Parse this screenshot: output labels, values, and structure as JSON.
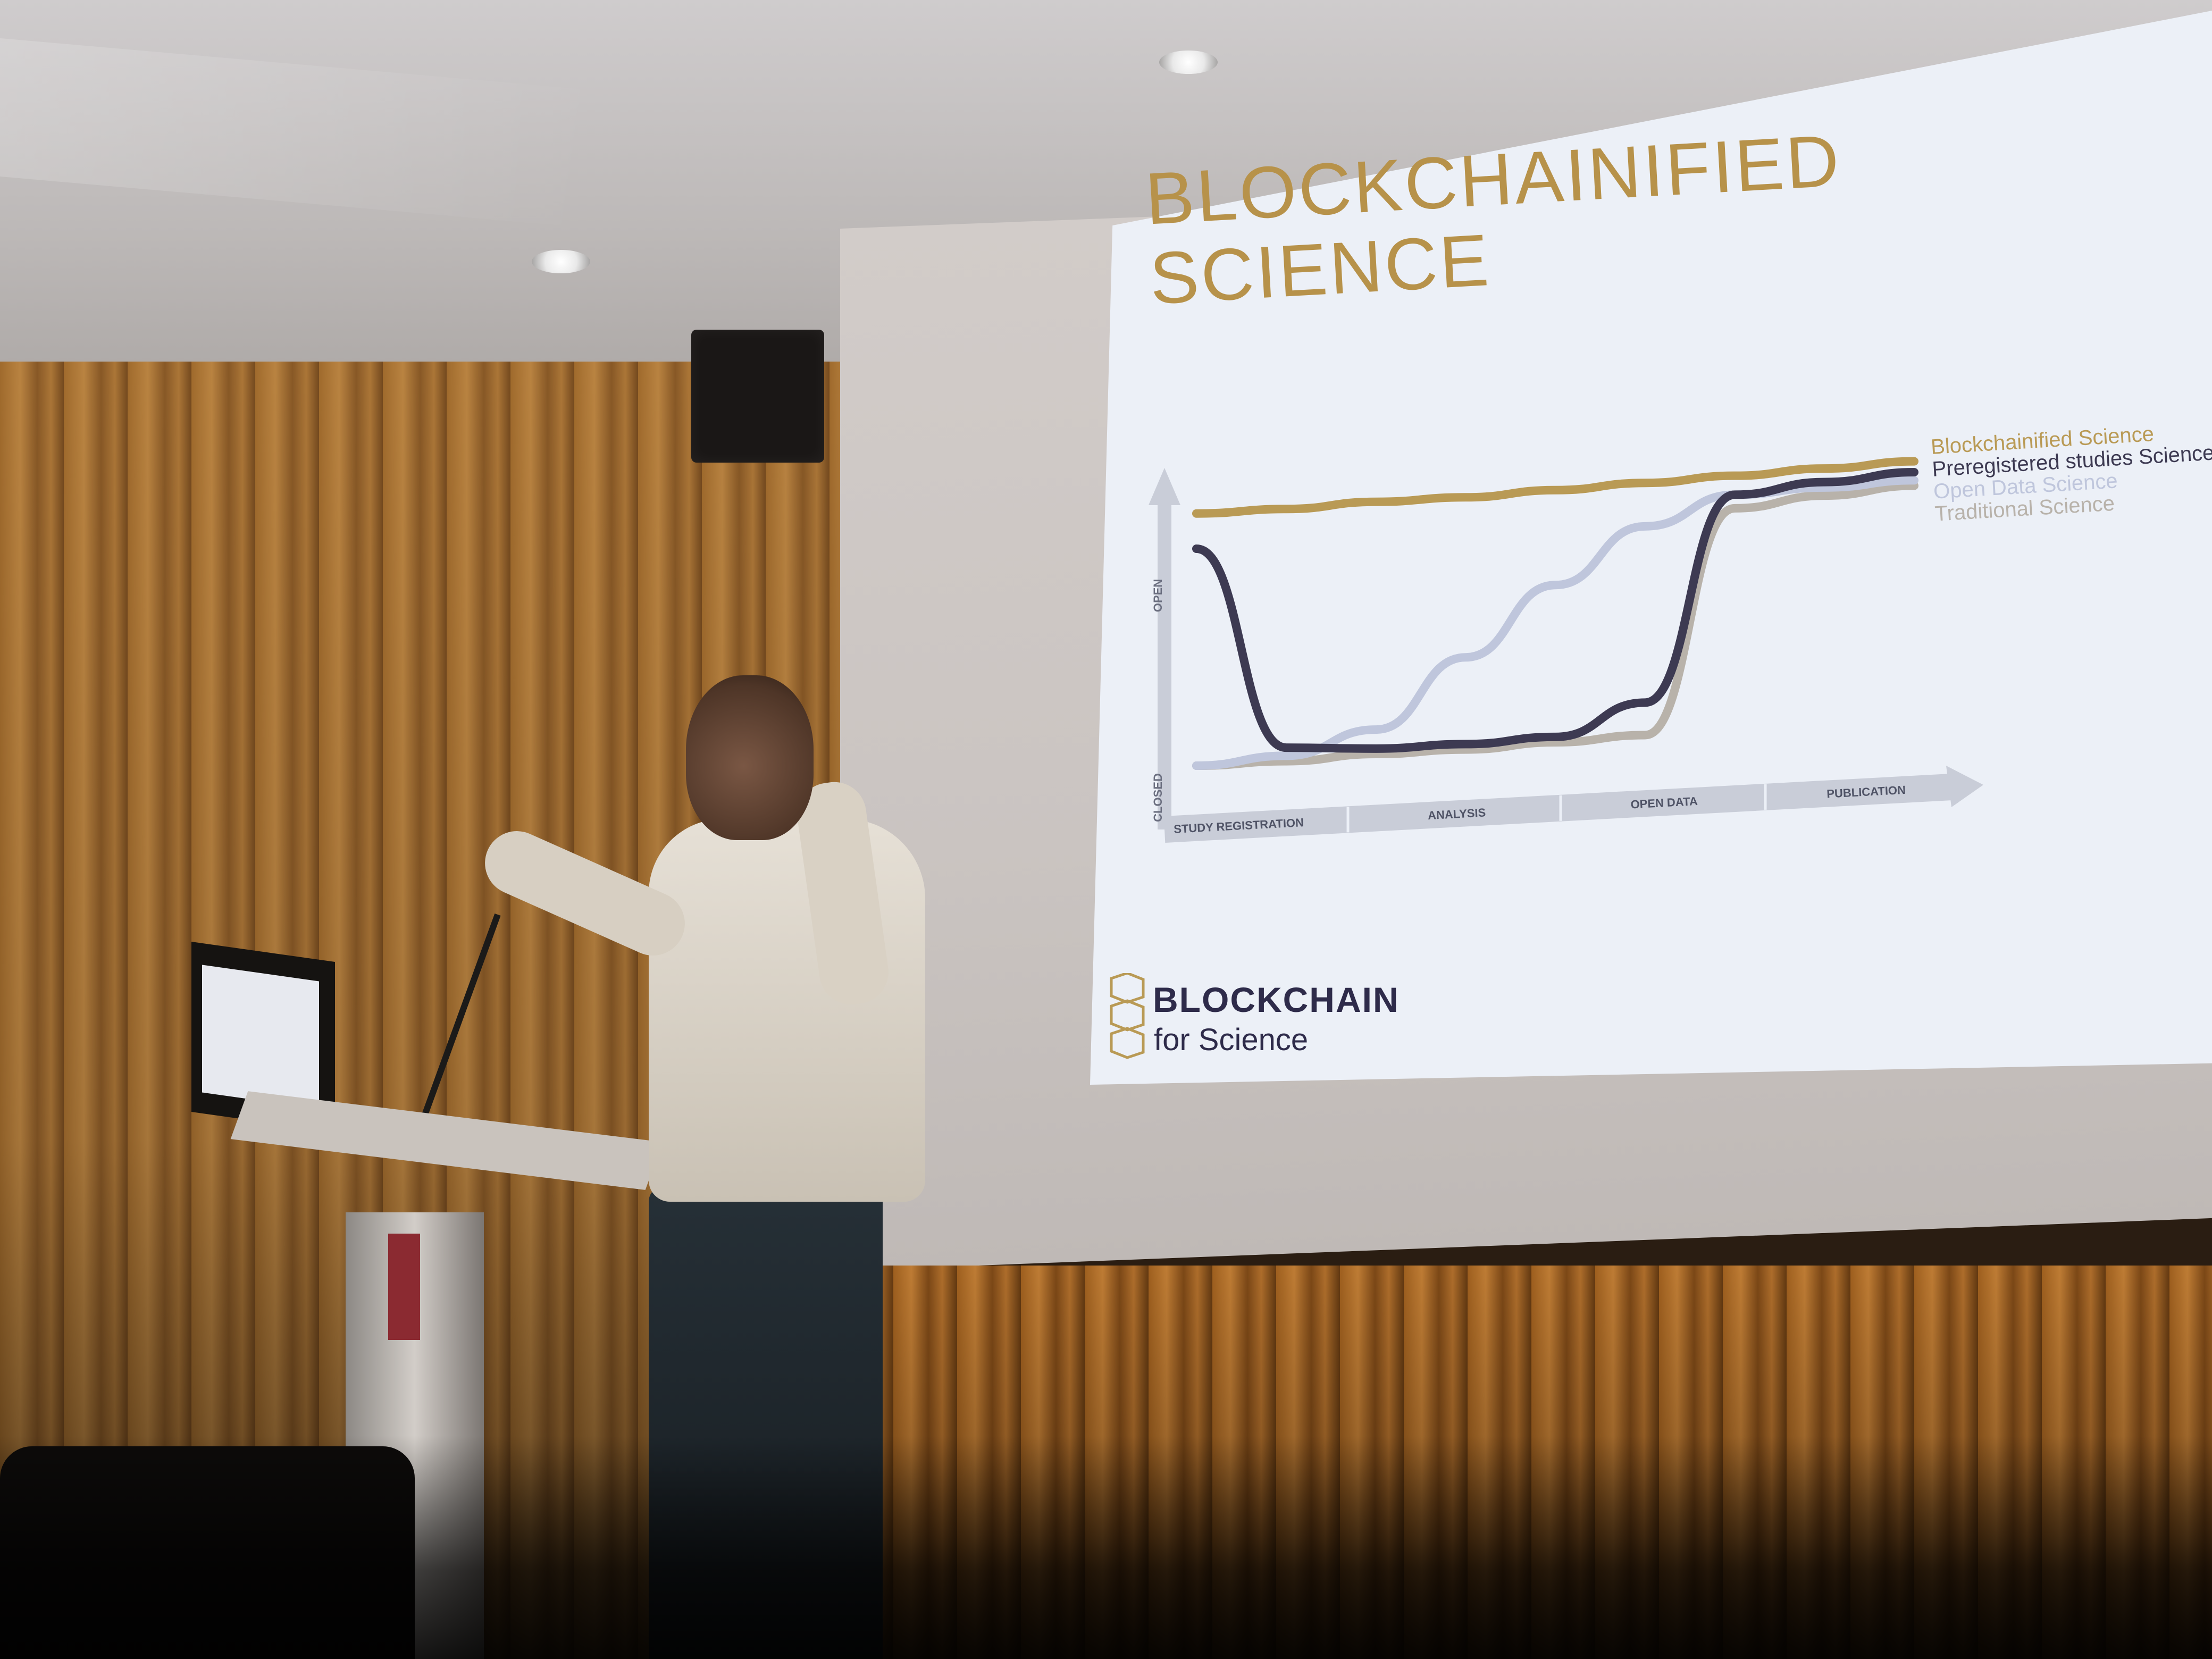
{
  "slide": {
    "title": "BLOCKCHAINIFIED\nSCIENCE",
    "brand_line1": "BLOCKCHAIN",
    "brand_line2": "for Science"
  },
  "colors": {
    "title": "#b7924a",
    "blockchainified": "#b99a55",
    "preregistered": "#3d3a52",
    "open_data": "#bfc6dc",
    "traditional": "#b8b2aa"
  },
  "chart_data": {
    "type": "line",
    "title": "",
    "xlabel": "",
    "ylabel": "",
    "y_tick_labels": [
      "CLOSED",
      "OPEN"
    ],
    "x_phases": [
      "STUDY REGISTRATION",
      "ANALYSIS",
      "OPEN DATA",
      "PUBLICATION"
    ],
    "x": [
      0,
      0.5,
      1,
      1.5,
      2,
      2.5,
      3,
      3.5,
      4
    ],
    "ylim": [
      0,
      1
    ],
    "legend_position": "top-right",
    "series": [
      {
        "name": "Blockchainified Science",
        "values": [
          0.93,
          0.93,
          0.94,
          0.94,
          0.95,
          0.96,
          0.97,
          0.98,
          0.99
        ]
      },
      {
        "name": "Preregistered studies Science",
        "values": [
          0.8,
          0.05,
          0.03,
          0.03,
          0.04,
          0.15,
          0.9,
          0.93,
          0.95
        ]
      },
      {
        "name": "Open Data Science",
        "values": [
          0.0,
          0.02,
          0.1,
          0.35,
          0.6,
          0.8,
          0.9,
          0.91,
          0.92
        ]
      },
      {
        "name": "Traditional Science",
        "values": [
          0.0,
          0.0,
          0.01,
          0.01,
          0.02,
          0.03,
          0.85,
          0.88,
          0.9
        ]
      }
    ]
  }
}
